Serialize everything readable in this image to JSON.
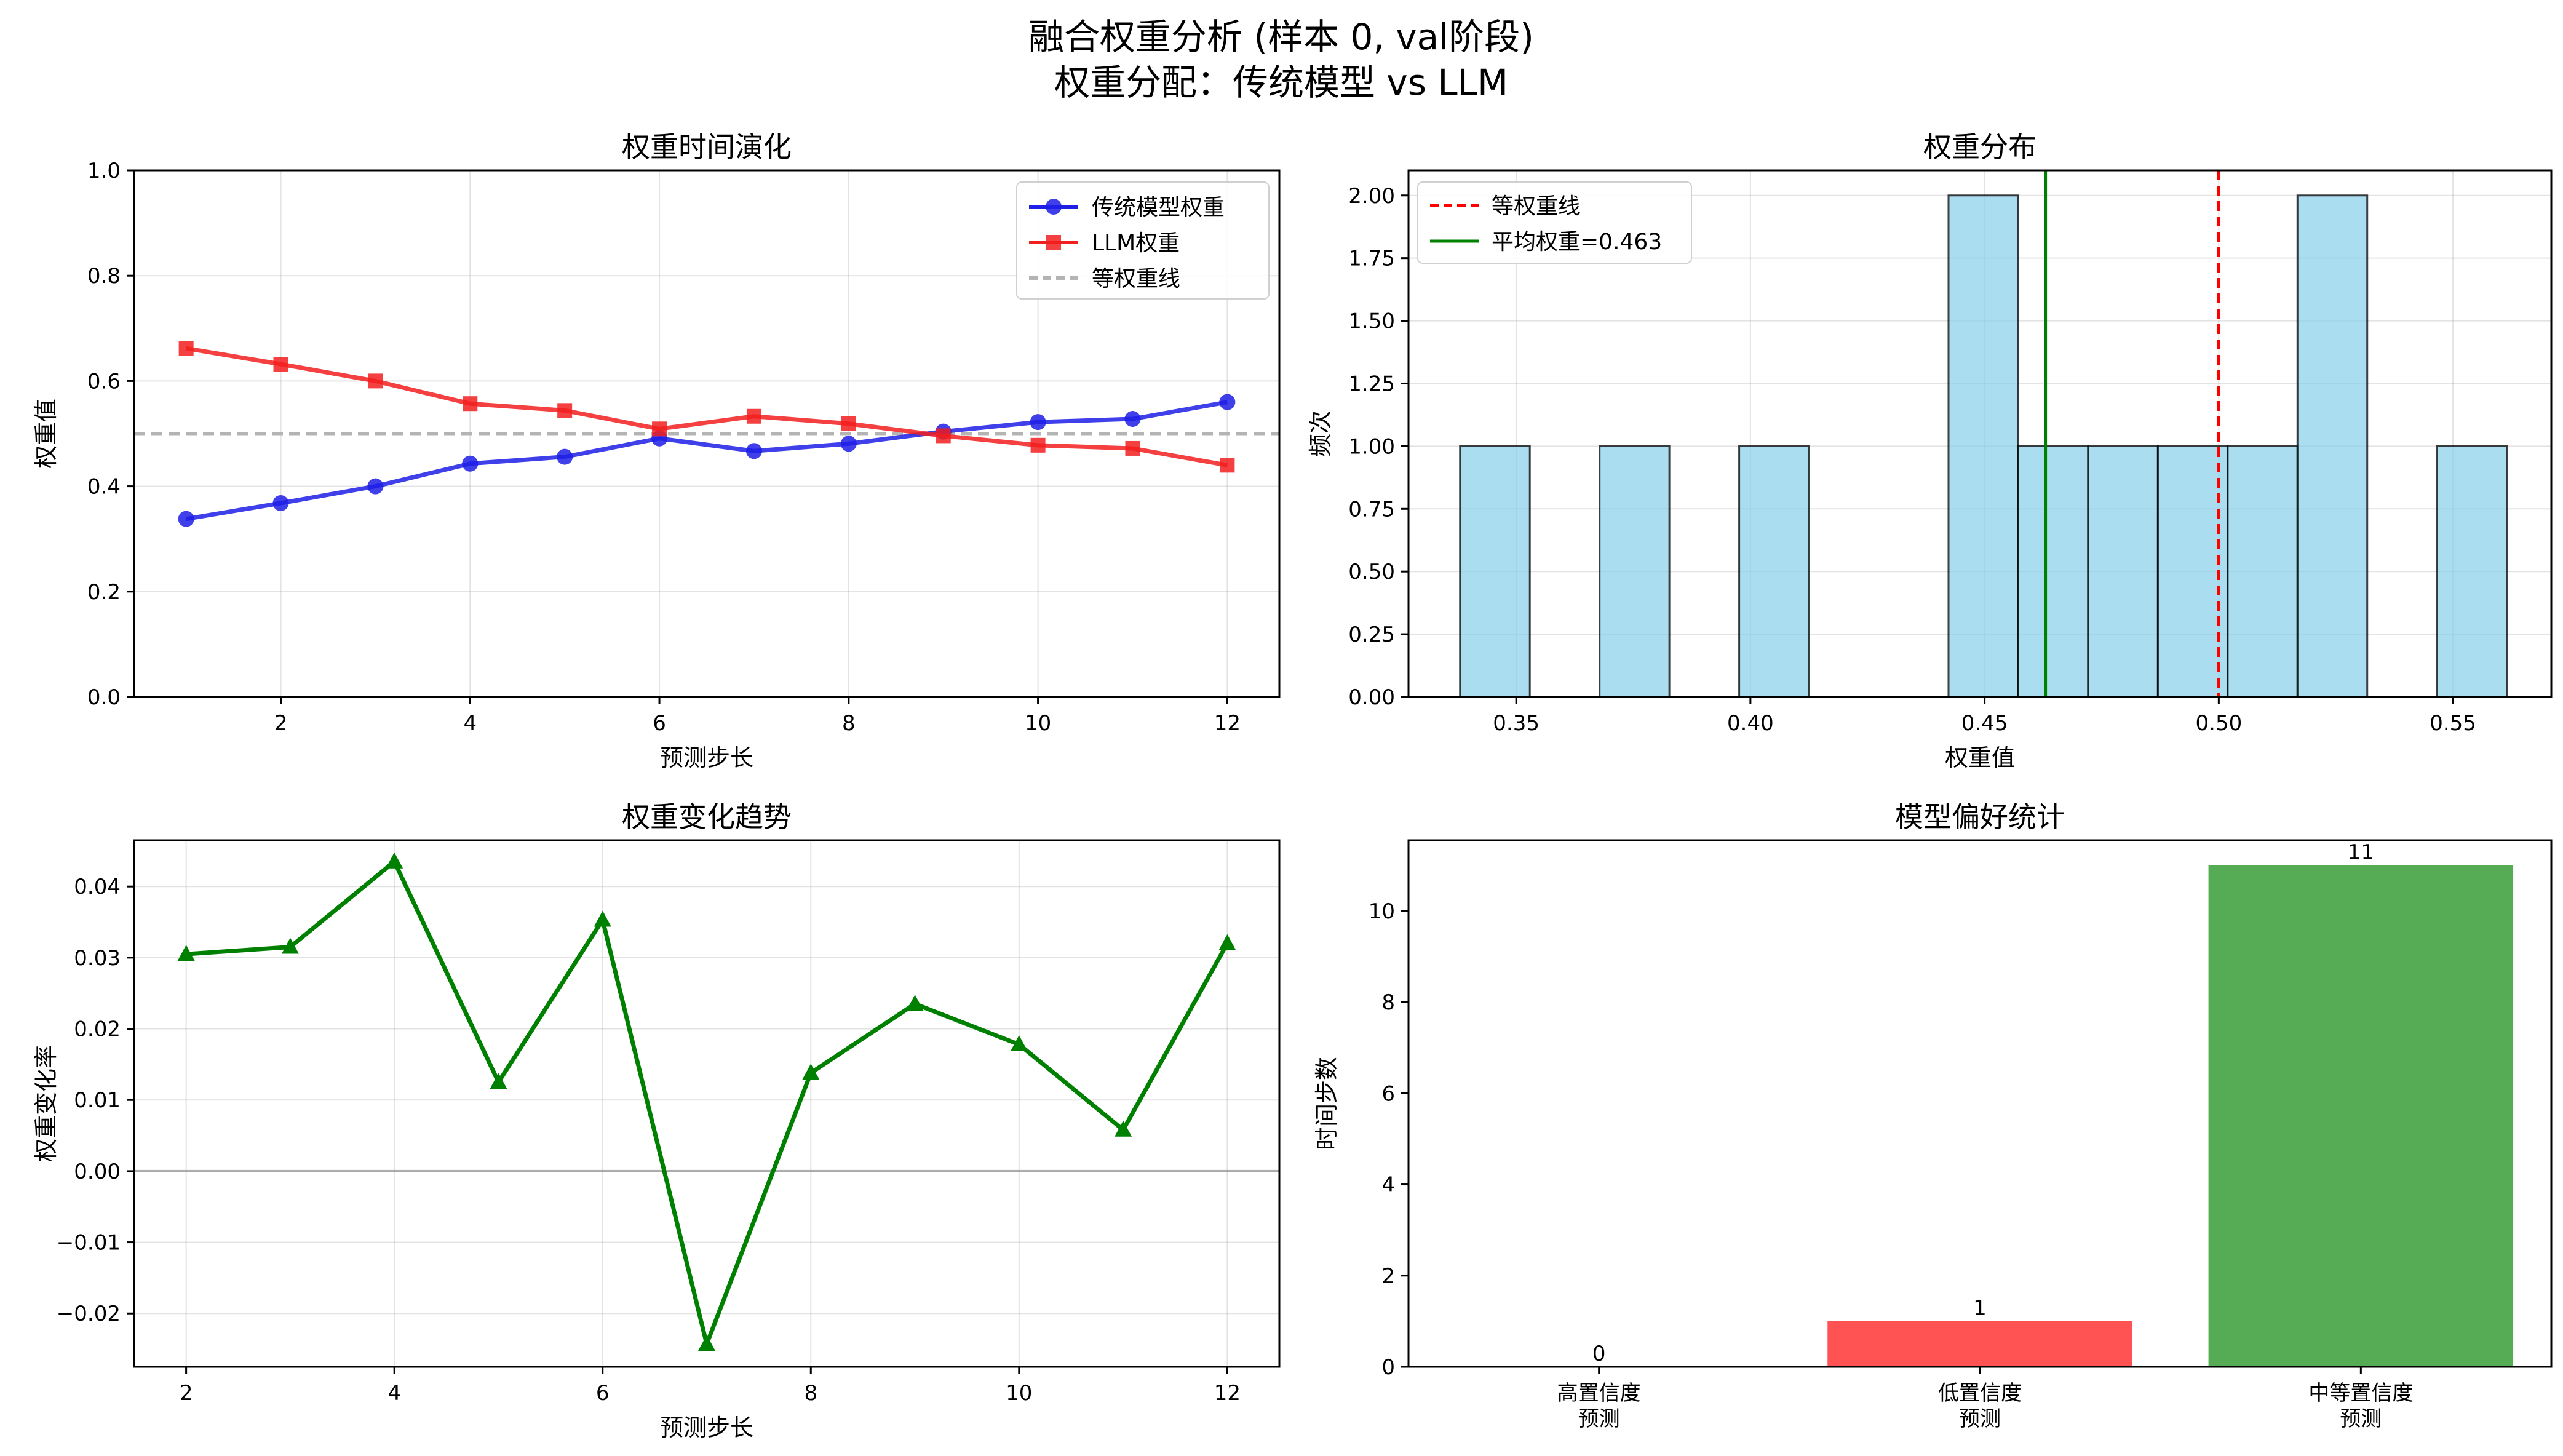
{
  "suptitle": {
    "line1": "融合权重分析 (样本 0, val阶段)",
    "line2": "权重分配：传统模型 vs LLM"
  },
  "chart_data": [
    {
      "id": "weights_over_time",
      "type": "line",
      "title": "权重时间演化",
      "xlabel": "预测步长",
      "ylabel": "权重值",
      "xlim": [
        0.45,
        12.55
      ],
      "ylim": [
        0.0,
        1.0
      ],
      "xticks": [
        2,
        4,
        6,
        8,
        10,
        12
      ],
      "yticks": [
        0.0,
        0.2,
        0.4,
        0.6,
        0.8,
        1.0
      ],
      "ytick_labels": [
        "0.0",
        "0.2",
        "0.4",
        "0.6",
        "0.8",
        "1.0"
      ],
      "grid": true,
      "legend": "top-right",
      "x": [
        1,
        2,
        3,
        4,
        5,
        6,
        7,
        8,
        9,
        10,
        11,
        12
      ],
      "series": [
        {
          "name": "传统模型权重",
          "color": "#1f1fe6",
          "marker": "circle",
          "values": [
            0.338,
            0.368,
            0.4,
            0.443,
            0.456,
            0.491,
            0.467,
            0.481,
            0.504,
            0.522,
            0.528,
            0.56
          ]
        },
        {
          "name": "LLM权重",
          "color": "#f21f1f",
          "marker": "square",
          "values": [
            0.662,
            0.632,
            0.6,
            0.557,
            0.544,
            0.509,
            0.533,
            0.519,
            0.496,
            0.478,
            0.472,
            0.44
          ]
        }
      ],
      "reference_line": {
        "name": "等权重线",
        "y": 0.5,
        "color": "#b4b4b4",
        "style": "dashed"
      }
    },
    {
      "id": "weight_distribution",
      "type": "bar",
      "subtype": "histogram",
      "title": "权重分布",
      "xlabel": "权重值",
      "ylabel": "频次",
      "xlim": [
        0.327,
        0.571
      ],
      "ylim": [
        0.0,
        2.1
      ],
      "xticks": [
        0.35,
        0.4,
        0.45,
        0.5,
        0.55
      ],
      "xtick_labels": [
        "0.35",
        "0.40",
        "0.45",
        "0.50",
        "0.55"
      ],
      "yticks": [
        0.0,
        0.25,
        0.5,
        0.75,
        1.0,
        1.25,
        1.5,
        1.75,
        2.0
      ],
      "ytick_labels": [
        "0.00",
        "0.25",
        "0.50",
        "0.75",
        "1.00",
        "1.25",
        "1.50",
        "1.75",
        "2.00"
      ],
      "grid": true,
      "legend": "top-left",
      "bar_color": "#87ceeb",
      "bin_edges": [
        0.338,
        0.3529,
        0.3678,
        0.3827,
        0.3976,
        0.4125,
        0.4274,
        0.4423,
        0.4572,
        0.4721,
        0.487,
        0.5019,
        0.5168,
        0.5317,
        0.5466,
        0.5615
      ],
      "counts": [
        1,
        0,
        1,
        0,
        1,
        0,
        0,
        2,
        1,
        1,
        1,
        1,
        2,
        0,
        1
      ],
      "vlines": [
        {
          "name": "等权重线",
          "x": 0.5,
          "color": "#ff0000",
          "style": "dashed"
        },
        {
          "name": "平均权重=0.463",
          "x": 0.463,
          "color": "#008000",
          "style": "solid"
        }
      ]
    },
    {
      "id": "weight_change_trend",
      "type": "line",
      "title": "权重变化趋势",
      "xlabel": "预测步长",
      "ylabel": "权重变化率",
      "xlim": [
        1.5,
        12.5
      ],
      "ylim": [
        -0.0275,
        0.0465
      ],
      "xticks": [
        2,
        4,
        6,
        8,
        10,
        12
      ],
      "yticks": [
        -0.02,
        -0.01,
        0.0,
        0.01,
        0.02,
        0.03,
        0.04
      ],
      "ytick_labels": [
        "−0.02",
        "−0.01",
        "0.00",
        "0.01",
        "0.02",
        "0.03",
        "0.04"
      ],
      "grid": true,
      "x": [
        2,
        3,
        4,
        5,
        6,
        7,
        8,
        9,
        10,
        11,
        12
      ],
      "series": [
        {
          "color": "#008000",
          "marker": "triangle",
          "values": [
            0.0305,
            0.0315,
            0.0435,
            0.0125,
            0.0353,
            -0.0243,
            0.0138,
            0.0235,
            0.0178,
            0.0058,
            0.032
          ]
        }
      ],
      "reference_line": {
        "y": 0.0,
        "color": "#808080",
        "style": "solid"
      }
    },
    {
      "id": "model_preference",
      "type": "bar",
      "title": "模型偏好统计",
      "xlabel": "",
      "ylabel": "时间步数",
      "ylim": [
        0,
        11.55
      ],
      "yticks": [
        0,
        2,
        4,
        6,
        8,
        10
      ],
      "grid": false,
      "categories": [
        [
          "高置信度",
          "预测"
        ],
        [
          "低置信度",
          "预测"
        ],
        [
          "中等置信度",
          "预测"
        ]
      ],
      "values": [
        0,
        1,
        11
      ],
      "data_labels": [
        "0",
        "1",
        "11"
      ],
      "colors": [
        "#4d6bff",
        "#ff4a4a",
        "#4ca84c"
      ]
    }
  ]
}
